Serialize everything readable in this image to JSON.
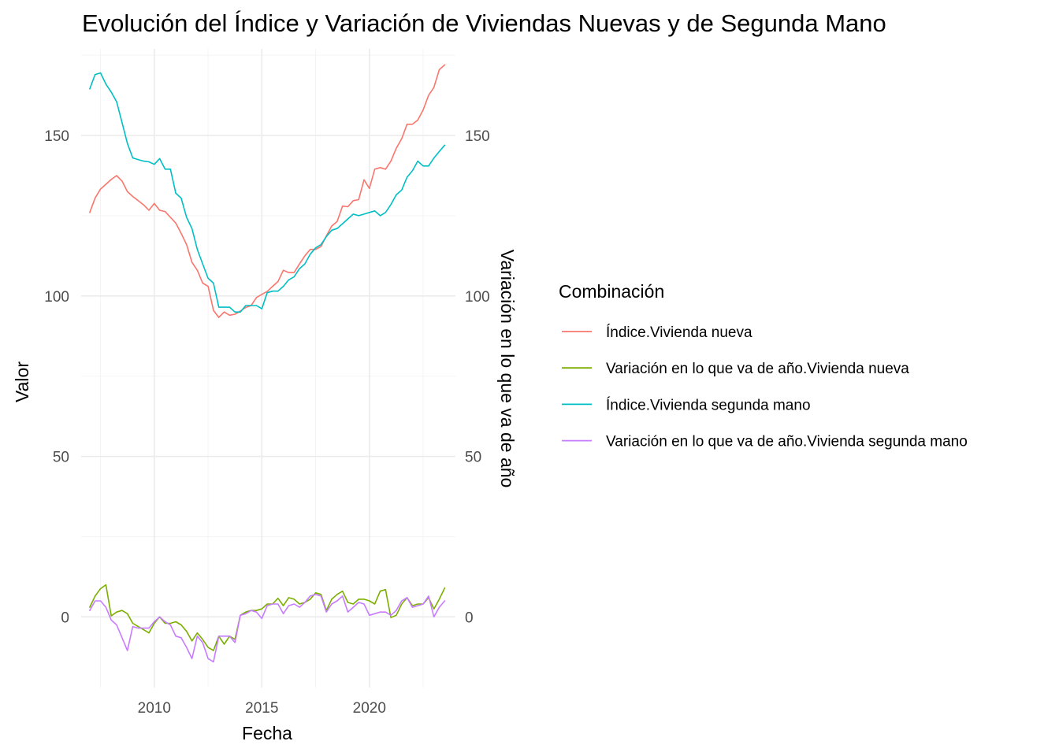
{
  "chart_data": {
    "type": "line",
    "title": "Evolución del Índice y Variación de Viviendas Nuevas y de Segunda Mano",
    "xlabel": "Fecha",
    "ylabel": "Valor",
    "ylabel_right": "Variación en lo que va de año",
    "x_ticks": [
      "2010",
      "2015",
      "2020"
    ],
    "y_ticks": [
      "0",
      "50",
      "100",
      "150"
    ],
    "y_ticks_right": [
      "0",
      "50",
      "100",
      "150"
    ],
    "xlim": [
      2006.6,
      2024.0
    ],
    "ylim": [
      -22,
      177
    ],
    "grid": true,
    "legend": {
      "title": "Combinación",
      "placement": "right"
    },
    "series": [
      {
        "name": "Índice.Vivienda nueva",
        "color": "#F8766D",
        "x": [
          2007.0,
          2007.25,
          2007.5,
          2007.75,
          2008.0,
          2008.25,
          2008.5,
          2008.75,
          2009.0,
          2009.25,
          2009.5,
          2009.75,
          2010.0,
          2010.25,
          2010.5,
          2010.75,
          2011.0,
          2011.25,
          2011.5,
          2011.75,
          2012.0,
          2012.25,
          2012.5,
          2012.75,
          2013.0,
          2013.25,
          2013.5,
          2013.75,
          2014.0,
          2014.25,
          2014.5,
          2014.75,
          2015.0,
          2015.25,
          2015.5,
          2015.75,
          2016.0,
          2016.25,
          2016.5,
          2016.75,
          2017.0,
          2017.25,
          2017.5,
          2017.75,
          2018.0,
          2018.25,
          2018.5,
          2018.75,
          2019.0,
          2019.25,
          2019.5,
          2019.75,
          2020.0,
          2020.25,
          2020.5,
          2020.75,
          2021.0,
          2021.25,
          2021.5,
          2021.75,
          2022.0,
          2022.25,
          2022.5,
          2022.75,
          2023.0,
          2023.25,
          2023.5
        ],
        "values": [
          126.0,
          130.5,
          133.3,
          134.8,
          136.3,
          137.5,
          135.8,
          132.5,
          131.0,
          129.7,
          128.4,
          126.7,
          128.8,
          126.7,
          126.3,
          124.5,
          122.7,
          119.5,
          116.0,
          110.5,
          108.0,
          104.0,
          103.0,
          95.5,
          93.3,
          95.0,
          94.0,
          94.3,
          95.3,
          96.4,
          97.0,
          99.5,
          100.5,
          101.4,
          103.0,
          104.5,
          108.0,
          107.3,
          107.3,
          110.0,
          112.5,
          114.5,
          114.5,
          115.4,
          118.7,
          121.8,
          123.2,
          128.0,
          127.8,
          129.7,
          130.0,
          136.2,
          133.5,
          139.5,
          140.0,
          139.5,
          142.0,
          146.0,
          149.0,
          153.5,
          153.5,
          154.8,
          158.0,
          162.5,
          165.0,
          170.5,
          172.0
        ]
      },
      {
        "name": "Variación en lo que va de año.Vivienda nueva",
        "color": "#7CAE00",
        "x": [
          2007.0,
          2007.25,
          2007.5,
          2007.75,
          2008.0,
          2008.25,
          2008.5,
          2008.75,
          2009.0,
          2009.25,
          2009.5,
          2009.75,
          2010.0,
          2010.25,
          2010.5,
          2010.75,
          2011.0,
          2011.25,
          2011.5,
          2011.75,
          2012.0,
          2012.25,
          2012.5,
          2012.75,
          2013.0,
          2013.25,
          2013.5,
          2013.75,
          2014.0,
          2014.25,
          2014.5,
          2014.75,
          2015.0,
          2015.25,
          2015.5,
          2015.75,
          2016.0,
          2016.25,
          2016.5,
          2016.75,
          2017.0,
          2017.25,
          2017.5,
          2017.75,
          2018.0,
          2018.25,
          2018.5,
          2018.75,
          2019.0,
          2019.25,
          2019.5,
          2019.75,
          2020.0,
          2020.25,
          2020.5,
          2020.75,
          2021.0,
          2021.25,
          2021.5,
          2021.75,
          2022.0,
          2022.25,
          2022.5,
          2022.75,
          2023.0,
          2023.25,
          2023.5
        ],
        "values": [
          3.0,
          6.5,
          8.8,
          10.0,
          0.3,
          1.5,
          2.0,
          1.0,
          -2.0,
          -3.0,
          -4.0,
          -5.0,
          -2.0,
          0.0,
          -2.0,
          -2.0,
          -1.5,
          -2.5,
          -4.5,
          -7.5,
          -5.0,
          -7.0,
          -9.5,
          -10.5,
          -6.0,
          -8.5,
          -6.0,
          -7.0,
          0.5,
          1.5,
          2.0,
          2.0,
          2.5,
          4.0,
          4.0,
          5.8,
          3.5,
          6.0,
          5.5,
          4.0,
          4.5,
          5.5,
          7.5,
          7.0,
          2.0,
          5.5,
          7.0,
          8.0,
          4.5,
          4.0,
          5.5,
          5.5,
          5.0,
          4.0,
          8.0,
          8.5,
          -0.2,
          0.5,
          4.0,
          6.0,
          3.5,
          4.0,
          4.0,
          6.0,
          2.5,
          5.5,
          9.0
        ]
      },
      {
        "name": "Índice.Vivienda segunda mano",
        "color": "#00BFC4",
        "x": [
          2007.0,
          2007.25,
          2007.5,
          2007.75,
          2008.0,
          2008.25,
          2008.5,
          2008.75,
          2009.0,
          2009.25,
          2009.5,
          2009.75,
          2010.0,
          2010.25,
          2010.5,
          2010.75,
          2011.0,
          2011.25,
          2011.5,
          2011.75,
          2012.0,
          2012.25,
          2012.5,
          2012.75,
          2013.0,
          2013.25,
          2013.5,
          2013.75,
          2014.0,
          2014.25,
          2014.5,
          2014.75,
          2015.0,
          2015.25,
          2015.5,
          2015.75,
          2016.0,
          2016.25,
          2016.5,
          2016.75,
          2017.0,
          2017.25,
          2017.5,
          2017.75,
          2018.0,
          2018.25,
          2018.5,
          2018.75,
          2019.0,
          2019.25,
          2019.5,
          2019.75,
          2020.0,
          2020.25,
          2020.5,
          2020.75,
          2021.0,
          2021.25,
          2021.5,
          2021.75,
          2022.0,
          2022.25,
          2022.5,
          2022.75,
          2023.0,
          2023.25,
          2023.5
        ],
        "values": [
          164.5,
          169.0,
          169.5,
          166.0,
          163.5,
          160.5,
          154.0,
          147.5,
          143.0,
          142.5,
          142.0,
          141.8,
          141.0,
          142.8,
          139.5,
          139.5,
          132.0,
          130.5,
          124.5,
          121.0,
          114.5,
          110.0,
          105.5,
          104.0,
          96.5,
          96.5,
          96.5,
          95.0,
          95.0,
          97.0,
          97.0,
          97.0,
          96.0,
          101.0,
          101.5,
          101.5,
          103.0,
          105.0,
          106.0,
          108.5,
          110.0,
          113.0,
          115.0,
          116.0,
          118.5,
          120.5,
          121.0,
          122.5,
          124.0,
          125.5,
          125.0,
          125.5,
          126.0,
          126.5,
          125.0,
          126.0,
          128.5,
          131.5,
          133.0,
          137.0,
          139.0,
          142.0,
          140.5,
          140.5,
          143.0,
          145.0,
          147.0
        ]
      },
      {
        "name": "Variación en lo que va de año.Vivienda segunda mano",
        "color": "#C77CFF",
        "x": [
          2007.0,
          2007.25,
          2007.5,
          2007.75,
          2008.0,
          2008.25,
          2008.5,
          2008.75,
          2009.0,
          2009.25,
          2009.5,
          2009.75,
          2010.0,
          2010.25,
          2010.5,
          2010.75,
          2011.0,
          2011.25,
          2011.5,
          2011.75,
          2012.0,
          2012.25,
          2012.5,
          2012.75,
          2013.0,
          2013.25,
          2013.5,
          2013.75,
          2014.0,
          2014.25,
          2014.5,
          2014.75,
          2015.0,
          2015.25,
          2015.5,
          2015.75,
          2016.0,
          2016.25,
          2016.5,
          2016.75,
          2017.0,
          2017.25,
          2017.5,
          2017.75,
          2018.0,
          2018.25,
          2018.5,
          2018.75,
          2019.0,
          2019.25,
          2019.5,
          2019.75,
          2020.0,
          2020.25,
          2020.5,
          2020.75,
          2021.0,
          2021.25,
          2021.5,
          2021.75,
          2022.0,
          2022.25,
          2022.5,
          2022.75,
          2023.0,
          2023.25,
          2023.5
        ],
        "values": [
          2.0,
          5.0,
          5.0,
          3.0,
          -1.0,
          -2.5,
          -6.5,
          -10.5,
          -3.0,
          -3.5,
          -3.5,
          -3.5,
          -1.5,
          0.0,
          -1.5,
          -2.5,
          -6.0,
          -6.5,
          -9.5,
          -13.0,
          -6.0,
          -8.0,
          -13.0,
          -14.0,
          -6.0,
          -6.0,
          -6.0,
          -8.0,
          0.5,
          1.0,
          2.0,
          1.5,
          -0.5,
          3.5,
          4.0,
          4.0,
          1.0,
          3.5,
          4.0,
          3.0,
          4.5,
          6.5,
          7.0,
          6.5,
          1.5,
          4.0,
          5.0,
          6.5,
          1.5,
          3.0,
          4.5,
          4.0,
          0.5,
          1.0,
          1.5,
          1.5,
          0.5,
          2.0,
          5.0,
          6.0,
          3.0,
          3.5,
          4.0,
          6.5,
          0.0,
          3.0,
          5.0
        ]
      }
    ]
  }
}
